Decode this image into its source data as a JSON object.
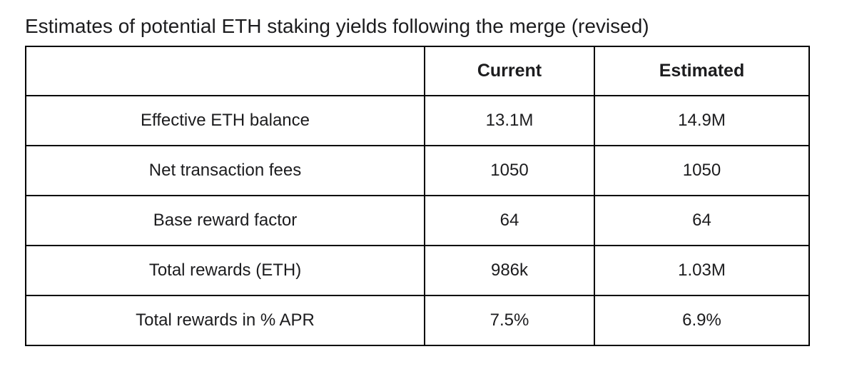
{
  "chart_data": {
    "type": "table",
    "title": "Estimates of potential ETH staking yields following the merge (revised)",
    "columns": [
      "",
      "Current",
      "Estimated"
    ],
    "rows": [
      {
        "label": "Effective ETH balance",
        "current": "13.1M",
        "estimated": "14.9M"
      },
      {
        "label": "Net transaction fees",
        "current": "1050",
        "estimated": "1050"
      },
      {
        "label": "Base reward factor",
        "current": "64",
        "estimated": "64"
      },
      {
        "label": "Total rewards (ETH)",
        "current": "986k",
        "estimated": "1.03M"
      },
      {
        "label": "Total rewards in % APR",
        "current": "7.5%",
        "estimated": "6.9%"
      }
    ],
    "layout": {
      "grid": "on",
      "header_style": "bold",
      "cell_alignment": "center"
    }
  },
  "colors": {
    "text": "#1c1c1e",
    "border": "#000000",
    "background": "#ffffff"
  }
}
